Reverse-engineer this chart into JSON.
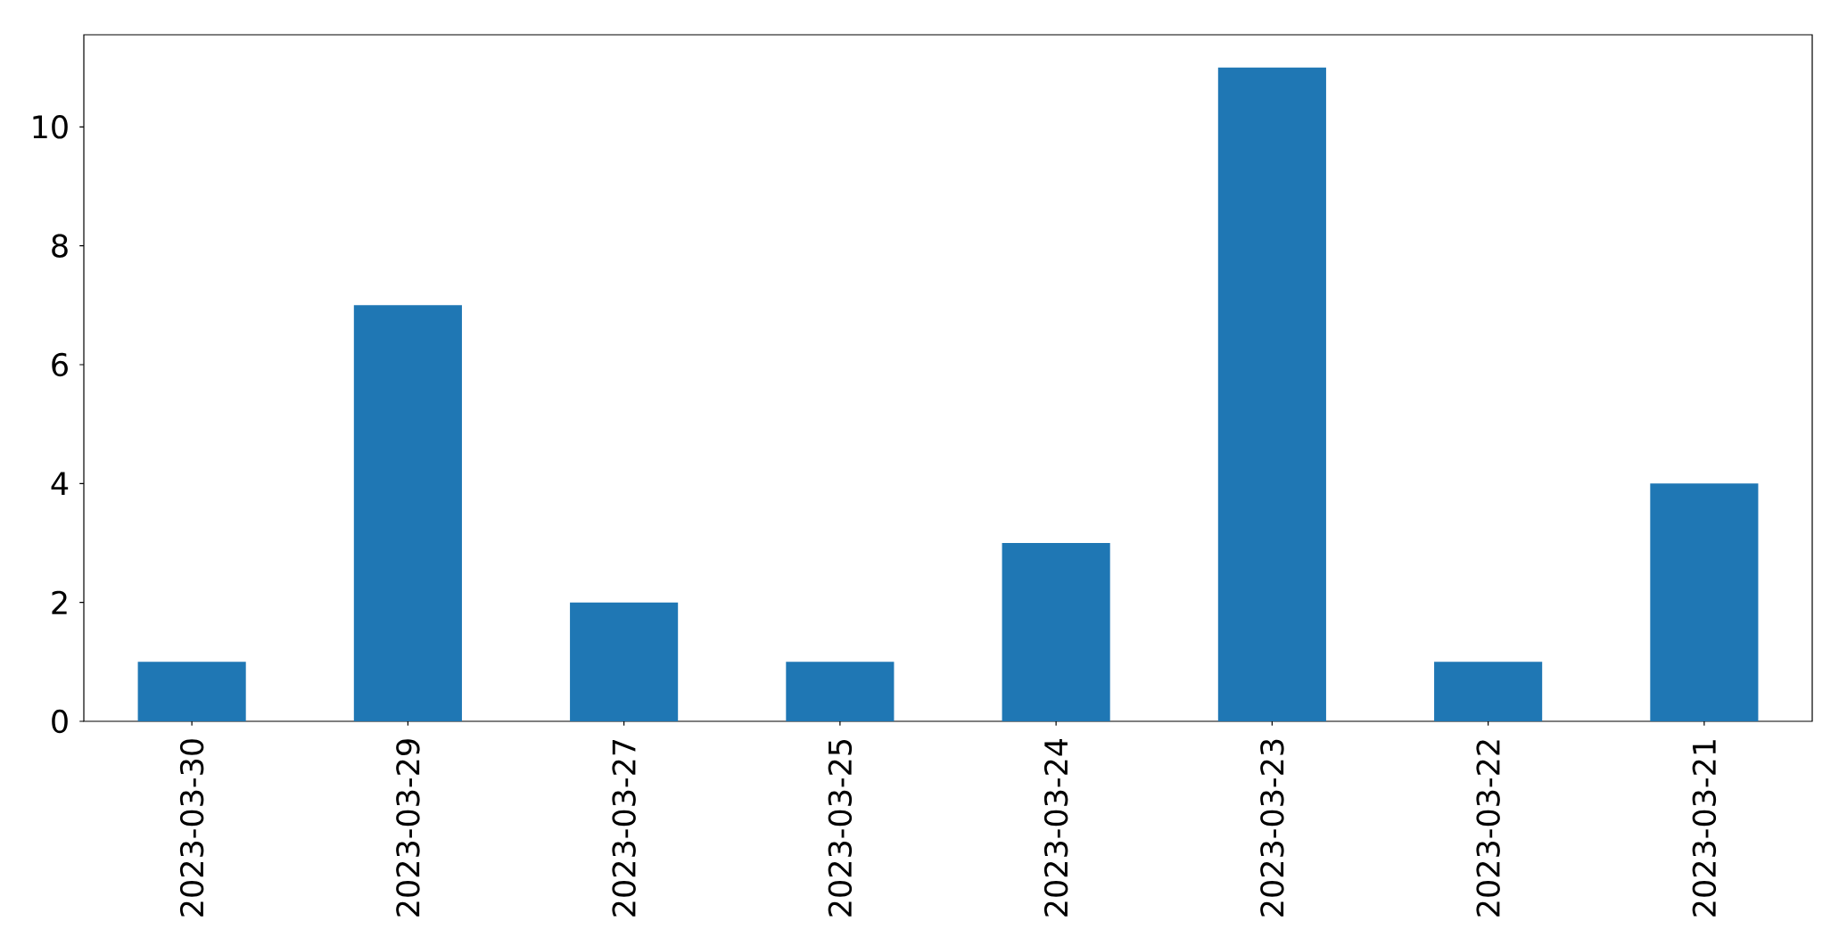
{
  "chart_data": {
    "type": "bar",
    "categories": [
      "2023-03-30",
      "2023-03-29",
      "2023-03-27",
      "2023-03-25",
      "2023-03-24",
      "2023-03-23",
      "2023-03-22",
      "2023-03-21"
    ],
    "values": [
      1,
      7,
      2,
      1,
      3,
      11,
      1,
      4
    ],
    "color": "#1f77b4",
    "ylim": [
      0,
      11.55
    ],
    "yticks": [
      0,
      2,
      4,
      6,
      8,
      10
    ]
  }
}
